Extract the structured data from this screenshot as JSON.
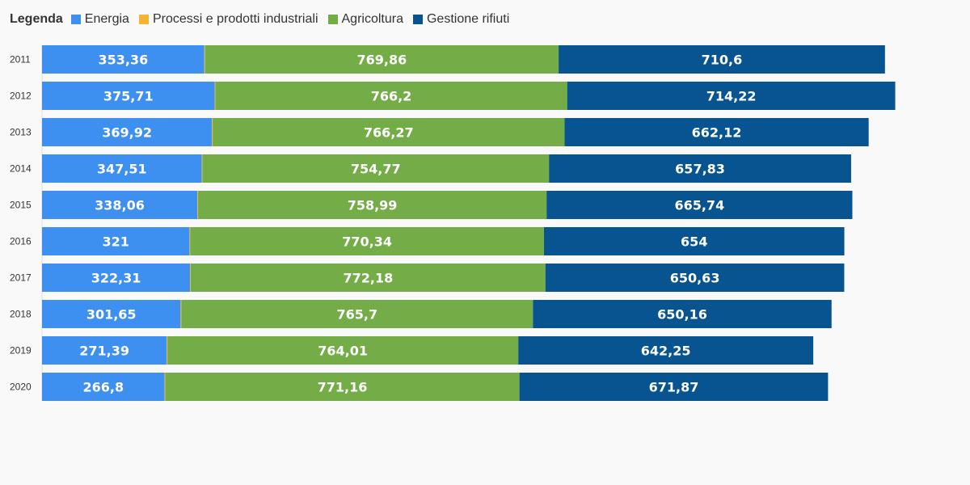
{
  "legend": {
    "title": "Legenda"
  },
  "chart_data": {
    "type": "bar",
    "orientation": "horizontal",
    "stacked": true,
    "legend_position": "top-left",
    "grid": false,
    "categories": [
      "2011",
      "2012",
      "2013",
      "2014",
      "2015",
      "2016",
      "2017",
      "2018",
      "2019",
      "2020"
    ],
    "series": [
      {
        "name": "Energia",
        "color": "#3d8ff0",
        "values": [
          353.36,
          375.71,
          369.92,
          347.51,
          338.06,
          321,
          322.31,
          301.65,
          271.39,
          266.8
        ],
        "labels": [
          "353,36",
          "375,71",
          "369,92",
          "347,51",
          "338,06",
          "321",
          "322,31",
          "301,65",
          "271,39",
          "266,8"
        ]
      },
      {
        "name": "Processi e prodotti industriali",
        "color": "#f5b335",
        "values": [
          1.5,
          1.5,
          1.5,
          1.5,
          1.5,
          1.5,
          1.5,
          1.5,
          1.5,
          1.5
        ],
        "labels": [
          "",
          "",
          "",
          "",
          "",
          "",
          "",
          "",
          "",
          ""
        ]
      },
      {
        "name": "Agricoltura",
        "color": "#74ad48",
        "values": [
          769.86,
          766.2,
          766.27,
          754.77,
          758.99,
          770.34,
          772.18,
          765.7,
          764.01,
          771.16
        ],
        "labels": [
          "769,86",
          "766,2",
          "766,27",
          "754,77",
          "758,99",
          "770,34",
          "772,18",
          "765,7",
          "764,01",
          "771,16"
        ]
      },
      {
        "name": "Gestione rifiuti",
        "color": "#075491",
        "values": [
          710.6,
          714.22,
          662.12,
          657.83,
          665.74,
          654,
          650.63,
          650.16,
          642.25,
          671.87
        ],
        "labels": [
          "710,6",
          "714,22",
          "662,12",
          "657,83",
          "665,74",
          "654",
          "650,63",
          "650,16",
          "642,25",
          "671,87"
        ]
      }
    ]
  }
}
